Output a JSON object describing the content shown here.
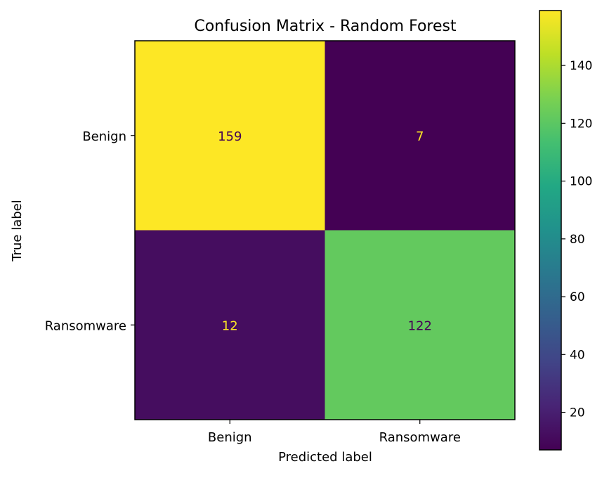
{
  "chart_data": {
    "type": "heatmap",
    "title": "Confusion Matrix - Random Forest",
    "xlabel": "Predicted label",
    "ylabel": "True label",
    "x_tick_labels": [
      "Benign",
      "Ransomware"
    ],
    "y_tick_labels": [
      "Benign",
      "Ransomware"
    ],
    "matrix": [
      [
        159,
        7
      ],
      [
        12,
        122
      ]
    ],
    "colormap": "viridis",
    "colorbar": {
      "range": [
        7,
        159
      ],
      "ticks": [
        20,
        40,
        60,
        80,
        100,
        120,
        140
      ],
      "tick_labels": [
        "20",
        "40",
        "60",
        "80",
        "100",
        "120",
        "140"
      ]
    },
    "annotation_colors": {
      "on_dark": "#fde725",
      "on_light": "#440154"
    },
    "grid": false
  }
}
